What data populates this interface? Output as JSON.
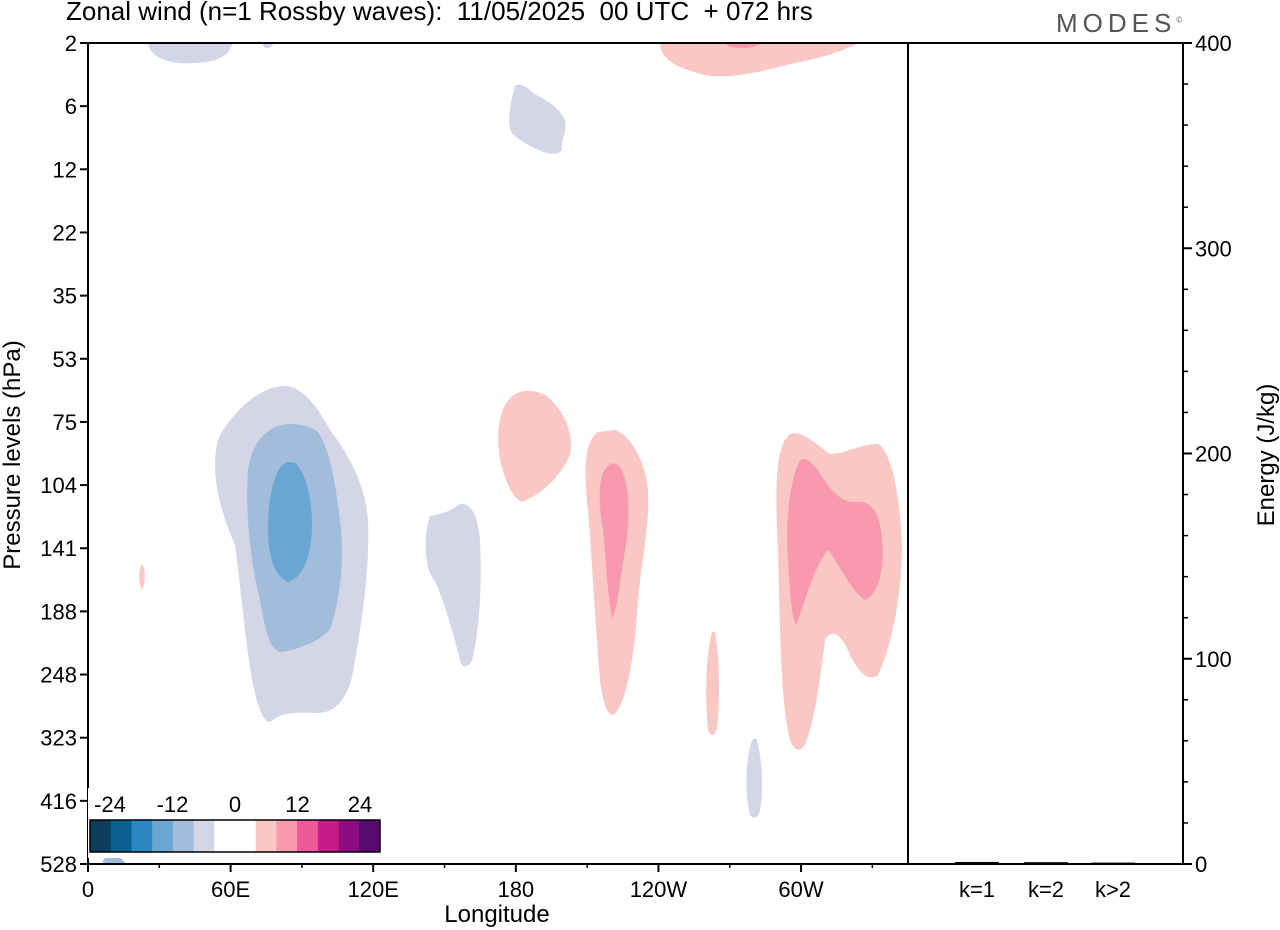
{
  "chart_data": {
    "type": "heatmap",
    "title": "Zonal wind (n=1 Rossby waves):  11/05/2025  00 UTC  + 072 hrs",
    "brand": "MODES",
    "brand_mark": "©",
    "xlabel": "Longitude",
    "ylabel": "Pressure levels (hPa)",
    "y2label": "Energy (J/kg)",
    "x_ticks": [
      "0",
      "60E",
      "120E",
      "180",
      "120W",
      "60W"
    ],
    "x_tick_degrees": [
      0,
      60,
      120,
      180,
      240,
      300
    ],
    "xlim": [
      0,
      345
    ],
    "pressure_levels": [
      "2",
      "6",
      "12",
      "22",
      "35",
      "53",
      "75",
      "104",
      "141",
      "188",
      "248",
      "323",
      "416",
      "528"
    ],
    "energy_ticks": [
      "0",
      "100",
      "200",
      "300",
      "400"
    ],
    "energy_ylim": [
      0,
      400
    ],
    "energy_categories": [
      "k=1",
      "k=2",
      "k>2"
    ],
    "energy_values": [
      0.5,
      0.4,
      0.2
    ],
    "colorbar": {
      "tick_labels": [
        "-24",
        "-12",
        "0",
        "12",
        "24"
      ],
      "colors": [
        "#0c3d5c",
        "#0a5f92",
        "#2a86bf",
        "#68a7d2",
        "#a2bcdb",
        "#d4d6e8",
        "#ffffff",
        "#ffffff",
        "#f9c8c4",
        "#f899b0",
        "#ee5a97",
        "#c71c87",
        "#8f0c80",
        "#560a6e"
      ]
    },
    "colors": {
      "neg_1": "#d4d6e8",
      "neg_2": "#a2bcdb",
      "neg_3": "#68a7d2",
      "pos_1": "#f9c8c4",
      "pos_2": "#f899b0"
    }
  }
}
